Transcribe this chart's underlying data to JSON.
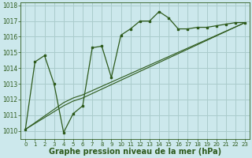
{
  "background_color": "#cce8ec",
  "grid_color": "#b0d8dc",
  "line_color": "#2d5a1b",
  "marker_color": "#2d5a1b",
  "xlabel": "Graphe pression niveau de la mer (hPa)",
  "xlabel_fontsize": 7.0,
  "ylim": [
    1009.5,
    1018.2
  ],
  "xlim": [
    -0.5,
    23.5
  ],
  "yticks": [
    1010,
    1011,
    1012,
    1013,
    1014,
    1015,
    1016,
    1017,
    1018
  ],
  "xticks": [
    0,
    1,
    2,
    3,
    4,
    5,
    6,
    7,
    8,
    9,
    10,
    11,
    12,
    13,
    14,
    15,
    16,
    17,
    18,
    19,
    20,
    21,
    22,
    23
  ],
  "series1_x": [
    0,
    1,
    2,
    3,
    4,
    5,
    6,
    7,
    8,
    9,
    10,
    11,
    12,
    13,
    14,
    15,
    16,
    17,
    18,
    19,
    20,
    21,
    22,
    23
  ],
  "series1_y": [
    1010.1,
    1014.4,
    1014.8,
    1013.0,
    1009.9,
    1011.1,
    1011.6,
    1015.3,
    1015.4,
    1013.4,
    1016.1,
    1016.5,
    1017.0,
    1017.0,
    1017.6,
    1017.2,
    1016.5,
    1016.5,
    1016.6,
    1016.6,
    1016.7,
    1016.8,
    1016.9,
    1016.9
  ],
  "series2_x": [
    0,
    4,
    5,
    6,
    23
  ],
  "series2_y": [
    1010.1,
    1011.6,
    1011.9,
    1012.1,
    1016.9
  ],
  "series3_x": [
    0,
    4,
    5,
    6,
    23
  ],
  "series3_y": [
    1010.1,
    1011.8,
    1012.1,
    1012.3,
    1016.9
  ]
}
